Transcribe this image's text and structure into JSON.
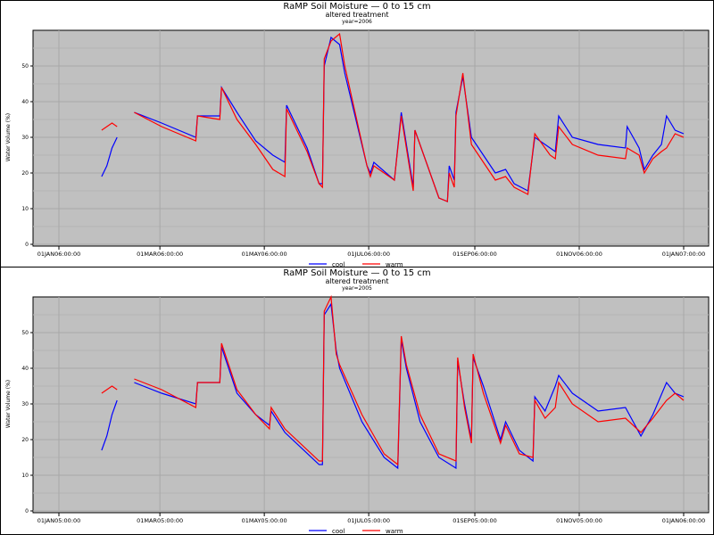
{
  "chart_data": [
    {
      "type": "line",
      "title": "RaMP Soil Moisture — 0 to 15 cm",
      "subtitle": "altered treatment",
      "byline": "year=2006",
      "xlabel": "",
      "ylabel": "Water Volume (%)",
      "ylim": [
        0,
        60
      ],
      "yticks": [
        "0",
        "10",
        "20",
        "30",
        "40",
        "50"
      ],
      "xtick_days": [
        0,
        59,
        120,
        181,
        243,
        304,
        365
      ],
      "xticks": [
        "01JAN06:00:00",
        "01MAR06:00:00",
        "01MAY06:00:00",
        "01JUL06:00:00",
        "01SEP06:00:00",
        "01NOV06:00:00",
        "01JAN07:00:00"
      ],
      "grid": true,
      "legend": "bottom",
      "series": [
        {
          "name": "cool",
          "color": "#0000ff",
          "points": [
            [
              25,
              19
            ],
            [
              28,
              22
            ],
            [
              31,
              27
            ],
            [
              34,
              30
            ],
            null,
            [
              44,
              37
            ],
            [
              60,
              34
            ],
            [
              80,
              30
            ],
            [
              81,
              36
            ],
            [
              94,
              36
            ],
            [
              95,
              44
            ],
            [
              104,
              37
            ],
            [
              115,
              29
            ],
            [
              125,
              25
            ],
            [
              132,
              23
            ],
            [
              133,
              39
            ],
            [
              145,
              27
            ],
            [
              152,
              17
            ],
            [
              154,
              17
            ],
            [
              155,
              50
            ],
            [
              159,
              58
            ],
            [
              164,
              56
            ],
            [
              167,
              48
            ],
            [
              180,
              22
            ],
            [
              182,
              20
            ],
            [
              184,
              23
            ],
            [
              196,
              18
            ],
            [
              200,
              37
            ],
            [
              207,
              16
            ],
            [
              208,
              32
            ],
            [
              222,
              13
            ],
            [
              227,
              12
            ],
            [
              228,
              22
            ],
            [
              231,
              18
            ],
            [
              232,
              37
            ],
            [
              236,
              47
            ],
            [
              241,
              30
            ],
            [
              255,
              20
            ],
            [
              261,
              21
            ],
            [
              266,
              17
            ],
            [
              274,
              15
            ],
            [
              278,
              30
            ],
            [
              287,
              27
            ],
            [
              290,
              26
            ],
            [
              292,
              36
            ],
            [
              300,
              30
            ],
            [
              315,
              28
            ],
            [
              331,
              27
            ],
            [
              332,
              33
            ],
            [
              339,
              27
            ],
            [
              342,
              21
            ],
            [
              347,
              25
            ],
            [
              352,
              28
            ],
            [
              355,
              36
            ],
            [
              360,
              32
            ],
            [
              365,
              31
            ]
          ]
        },
        {
          "name": "warm",
          "color": "#ff0000",
          "points": [
            [
              25,
              32
            ],
            [
              28,
              33
            ],
            [
              31,
              34
            ],
            [
              34,
              33
            ],
            null,
            [
              44,
              37
            ],
            [
              60,
              33
            ],
            [
              80,
              29
            ],
            [
              81,
              36
            ],
            [
              94,
              35
            ],
            [
              95,
              44
            ],
            [
              104,
              35
            ],
            [
              115,
              28
            ],
            [
              125,
              21
            ],
            [
              132,
              19
            ],
            [
              133,
              38
            ],
            [
              145,
              26
            ],
            [
              152,
              17
            ],
            [
              154,
              16
            ],
            [
              155,
              52
            ],
            [
              159,
              57
            ],
            [
              164,
              59
            ],
            [
              167,
              50
            ],
            [
              180,
              22
            ],
            [
              182,
              19
            ],
            [
              184,
              22
            ],
            [
              196,
              18
            ],
            [
              200,
              36
            ],
            [
              207,
              15
            ],
            [
              208,
              32
            ],
            [
              222,
              13
            ],
            [
              227,
              12
            ],
            [
              228,
              20
            ],
            [
              231,
              16
            ],
            [
              232,
              36
            ],
            [
              236,
              48
            ],
            [
              241,
              28
            ],
            [
              255,
              18
            ],
            [
              261,
              19
            ],
            [
              266,
              16
            ],
            [
              274,
              14
            ],
            [
              278,
              31
            ],
            [
              287,
              25
            ],
            [
              290,
              24
            ],
            [
              292,
              33
            ],
            [
              300,
              28
            ],
            [
              315,
              25
            ],
            [
              331,
              24
            ],
            [
              332,
              27
            ],
            [
              339,
              25
            ],
            [
              342,
              20
            ],
            [
              347,
              24
            ],
            [
              352,
              26
            ],
            [
              355,
              27
            ],
            [
              360,
              31
            ],
            [
              365,
              30
            ]
          ]
        }
      ]
    },
    {
      "type": "line",
      "title": "RaMP Soil Moisture — 0 to 15 cm",
      "subtitle": "altered treatment",
      "byline": "year=2005",
      "xlabel": "",
      "ylabel": "Water Volume (%)",
      "ylim": [
        0,
        60
      ],
      "yticks": [
        "0",
        "10",
        "20",
        "30",
        "40",
        "50"
      ],
      "xtick_days": [
        0,
        59,
        120,
        181,
        243,
        304,
        365
      ],
      "xticks": [
        "01JAN05:00:00",
        "01MAR05:00:00",
        "01MAY05:00:00",
        "01JUL05:00:00",
        "01SEP05:00:00",
        "01NOV05:00:00",
        "01JAN06:00:00"
      ],
      "grid": true,
      "legend": "bottom",
      "series": [
        {
          "name": "cool",
          "color": "#0000ff",
          "points": [
            [
              25,
              17
            ],
            [
              28,
              21
            ],
            [
              31,
              27
            ],
            [
              34,
              31
            ],
            null,
            [
              44,
              36
            ],
            [
              60,
              33
            ],
            [
              80,
              30
            ],
            [
              81,
              36
            ],
            [
              94,
              36
            ],
            [
              95,
              46
            ],
            [
              104,
              33
            ],
            [
              115,
              27
            ],
            [
              123,
              24
            ],
            [
              124,
              28
            ],
            [
              132,
              22
            ],
            [
              152,
              13
            ],
            [
              154,
              13
            ],
            [
              155,
              55
            ],
            [
              159,
              58
            ],
            [
              162,
              45
            ],
            [
              164,
              40
            ],
            [
              177,
              25
            ],
            [
              190,
              15
            ],
            [
              198,
              12
            ],
            [
              200,
              48
            ],
            [
              203,
              40
            ],
            [
              211,
              25
            ],
            [
              222,
              15
            ],
            [
              232,
              12
            ],
            [
              233,
              42
            ],
            [
              237,
              30
            ],
            [
              241,
              20
            ],
            [
              242,
              43
            ],
            [
              248,
              35
            ],
            [
              258,
              20
            ],
            [
              261,
              25
            ],
            [
              269,
              17
            ],
            [
              277,
              14
            ],
            [
              278,
              32
            ],
            [
              284,
              28
            ],
            [
              290,
              35
            ],
            [
              292,
              38
            ],
            [
              300,
              33
            ],
            [
              315,
              28
            ],
            [
              331,
              29
            ],
            [
              340,
              21
            ],
            [
              347,
              27
            ],
            [
              355,
              36
            ],
            [
              360,
              33
            ],
            [
              365,
              32
            ]
          ]
        },
        {
          "name": "warm",
          "color": "#ff0000",
          "points": [
            [
              25,
              33
            ],
            [
              28,
              34
            ],
            [
              31,
              35
            ],
            [
              34,
              34
            ],
            null,
            [
              44,
              37
            ],
            [
              60,
              34
            ],
            [
              80,
              29
            ],
            [
              81,
              36
            ],
            [
              94,
              36
            ],
            [
              95,
              47
            ],
            [
              104,
              34
            ],
            [
              115,
              27
            ],
            [
              123,
              23
            ],
            [
              124,
              29
            ],
            [
              132,
              23
            ],
            [
              152,
              14
            ],
            [
              154,
              14
            ],
            [
              155,
              56
            ],
            [
              159,
              60
            ],
            [
              162,
              44
            ],
            [
              164,
              41
            ],
            [
              177,
              27
            ],
            [
              190,
              16
            ],
            [
              198,
              13
            ],
            [
              200,
              49
            ],
            [
              203,
              41
            ],
            [
              211,
              27
            ],
            [
              222,
              16
            ],
            [
              232,
              14
            ],
            [
              233,
              43
            ],
            [
              237,
              29
            ],
            [
              241,
              19
            ],
            [
              242,
              44
            ],
            [
              248,
              33
            ],
            [
              258,
              19
            ],
            [
              261,
              24
            ],
            [
              269,
              16
            ],
            [
              277,
              15
            ],
            [
              278,
              31
            ],
            [
              284,
              26
            ],
            [
              290,
              29
            ],
            [
              292,
              36
            ],
            [
              300,
              30
            ],
            [
              315,
              25
            ],
            [
              331,
              26
            ],
            [
              340,
              22
            ],
            [
              347,
              26
            ],
            [
              355,
              31
            ],
            [
              360,
              33
            ],
            [
              365,
              31
            ]
          ]
        }
      ]
    }
  ]
}
